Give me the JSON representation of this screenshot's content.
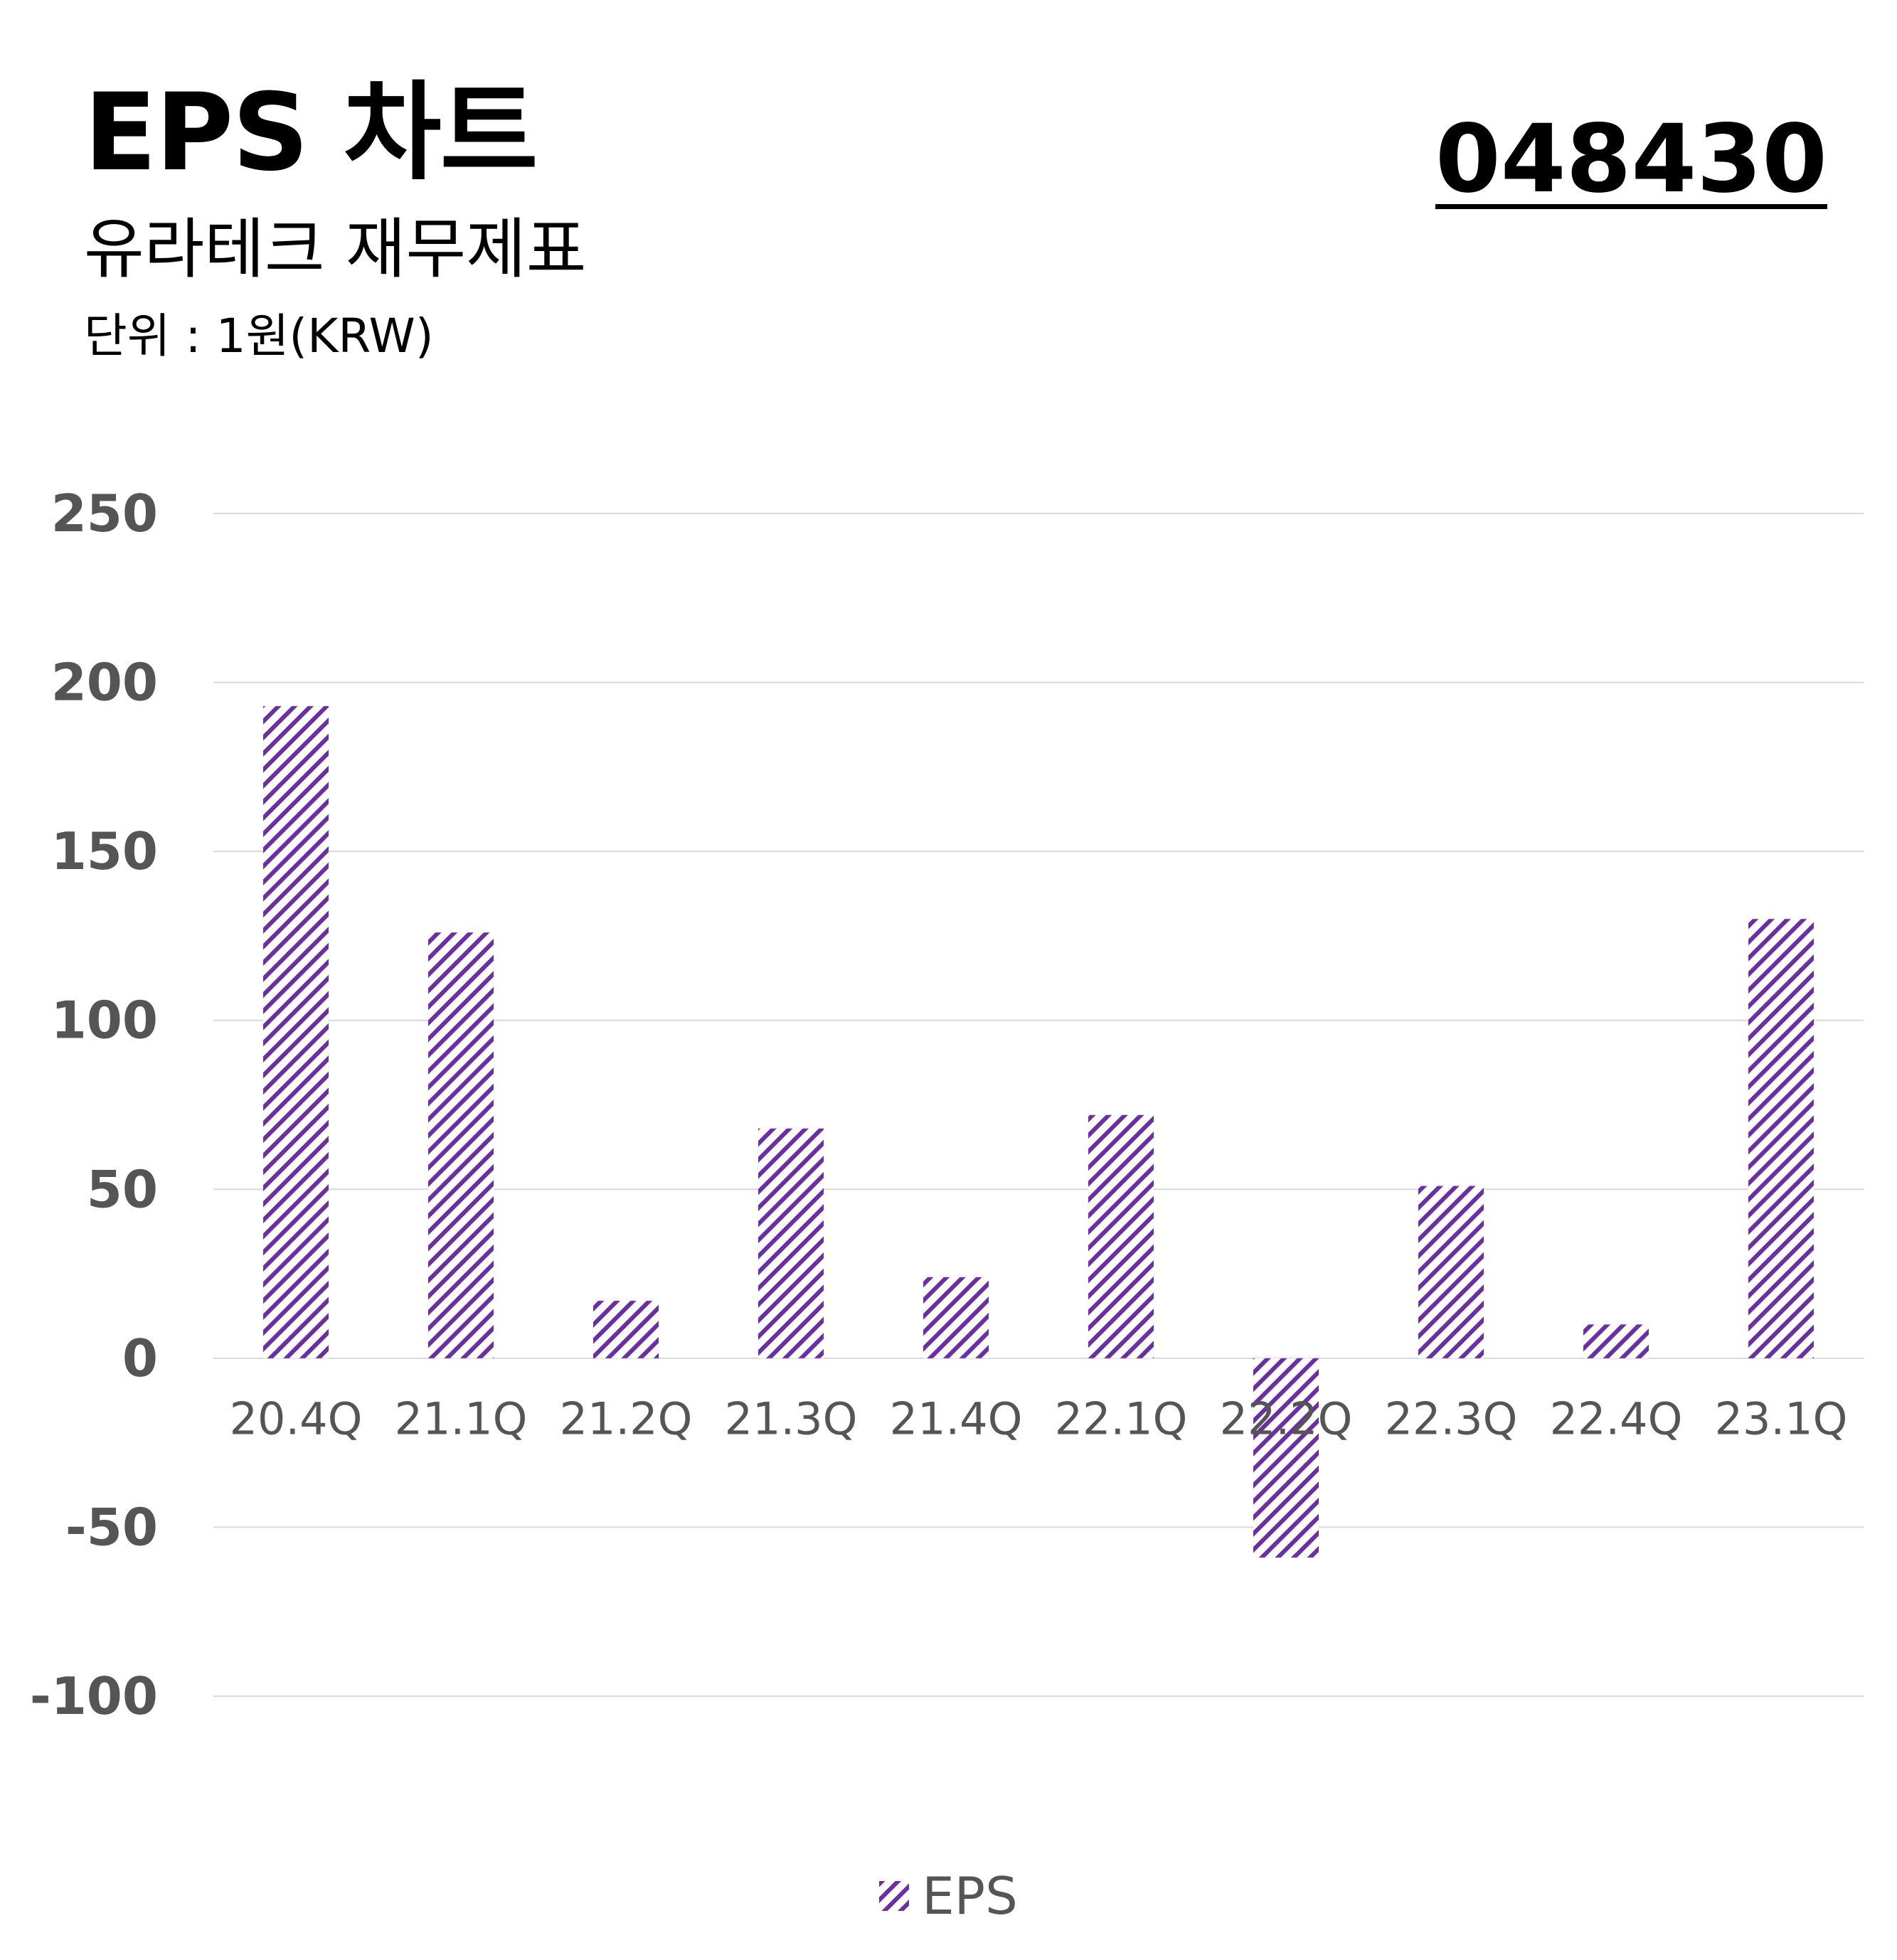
{
  "header": {
    "title": "EPS 차트",
    "code": "048430",
    "subtitle": "유라테크 재무제표",
    "unit": "단위 : 1원(KRW)"
  },
  "colors": {
    "bar": "#6a2fa0",
    "grid": "#d9d9d9",
    "axis_text": "#555555"
  },
  "chart_data": {
    "type": "bar",
    "categories": [
      "20.4Q",
      "21.1Q",
      "21.2Q",
      "21.3Q",
      "21.4Q",
      "22.1Q",
      "22.2Q",
      "22.3Q",
      "22.4Q",
      "23.1Q"
    ],
    "series": [
      {
        "name": "EPS",
        "values": [
          193,
          126,
          17,
          68,
          24,
          72,
          -59,
          51,
          10,
          130
        ]
      }
    ],
    "ylim": [
      -100,
      250
    ],
    "yticks": [
      250,
      200,
      150,
      100,
      50,
      0,
      -50,
      -100
    ],
    "grid": true,
    "legend": "bottom-center",
    "bar_fill": "diagonal-hatch"
  }
}
